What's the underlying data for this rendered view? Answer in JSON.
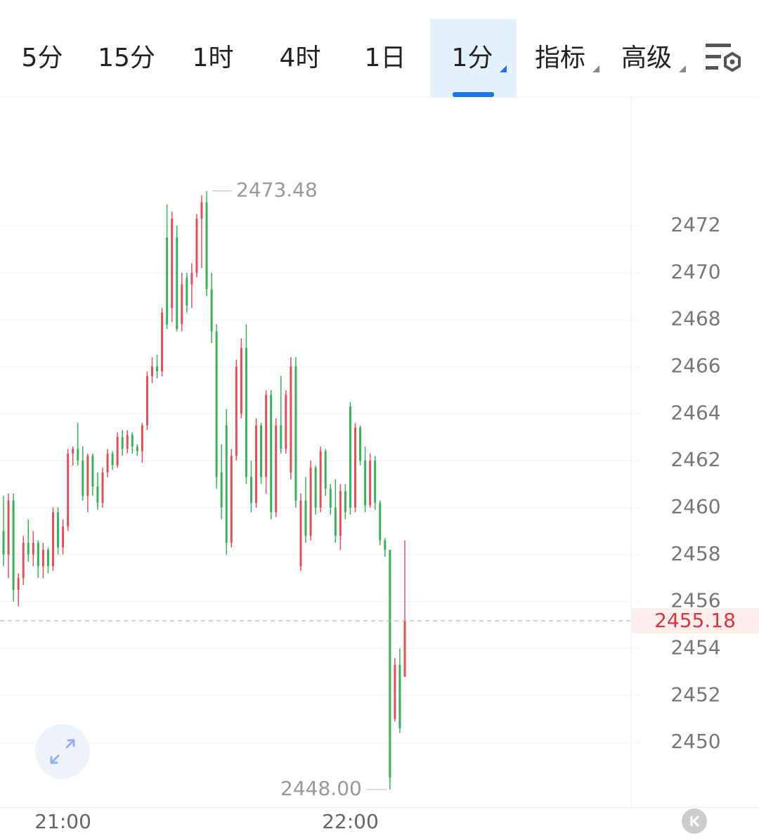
{
  "tabs": [
    "5分",
    "15分",
    "1时",
    "4时",
    "1日",
    "1分",
    "指标",
    "高级"
  ],
  "chart_data": {
    "type": "candlestick",
    "categories": [
      null,
      null,
      null,
      null,
      null,
      null,
      null,
      null,
      null,
      null,
      null,
      null,
      "21:00",
      null,
      null,
      null,
      null,
      null,
      null,
      null,
      null,
      null,
      null,
      null,
      null,
      null,
      null,
      null,
      null,
      null,
      null,
      null,
      null,
      null,
      null,
      null,
      null,
      null,
      null,
      null,
      null,
      null,
      null,
      null,
      null,
      null,
      null,
      null,
      null,
      null,
      null,
      null,
      null,
      null,
      null,
      null,
      null,
      null,
      null,
      null,
      null,
      null,
      null,
      null,
      null,
      null,
      null,
      null,
      null,
      null,
      "22:00",
      null,
      null,
      null,
      null,
      null,
      null,
      null,
      null,
      null,
      null,
      null
    ],
    "open": [
      2459,
      2458,
      2460.3,
      2456.5,
      2457,
      2458.5,
      2458,
      2458.5,
      2457.5,
      2458.2,
      2457.5,
      2459.8,
      2458.3,
      2459.2,
      2462.3,
      2462.5,
      2462,
      2460.5,
      2462.2,
      2460.9,
      2460.2,
      2461.5,
      2462.3,
      2461.8,
      2463,
      2462.5,
      2463.1,
      2462.6,
      2462.4,
      2463.5,
      2465.6,
      2466,
      2465.8,
      2471.5,
      2468.5,
      2471.5,
      2467.8,
      2469.8,
      2469.5,
      2470,
      2472.3,
      2473,
      2469.3,
      2467.5,
      2461.5,
      2463.5,
      2458.5,
      2462.2,
      2464,
      2466.8,
      2461.3,
      2460.2,
      2463.5,
      2461.3,
      2464.8,
      2459.8,
      2463.5,
      2462.5,
      2461.5,
      2466,
      2457.5,
      2460.3,
      2458.8,
      2461.7,
      2460,
      2462.4,
      2460.8,
      2460,
      2458.8,
      2460.7,
      2464.3,
      2460,
      2463.4,
      2462,
      2460.1,
      2462,
      2460.2,
      2458.6,
      2458.2,
      2451,
      2453.3,
      2452.8
    ],
    "high": [
      2460.5,
      2460.6,
      2460.6,
      2457.2,
      2458.8,
      2459.5,
      2459,
      2458.6,
      2458.5,
      2458.3,
      2460,
      2460,
      2459.5,
      2462.5,
      2462.6,
      2463.6,
      2462.6,
      2462.3,
      2462.3,
      2461.5,
      2461.7,
      2462.5,
      2462.4,
      2463.2,
      2463.3,
      2463.3,
      2463.2,
      2462.7,
      2463.6,
      2465.8,
      2466.4,
      2466.5,
      2468.5,
      2472.9,
      2472.6,
      2472,
      2470,
      2470,
      2470.4,
      2472.5,
      2473.3,
      2473.48,
      2470,
      2467.8,
      2462.7,
      2464.2,
      2462.5,
      2466.3,
      2467.2,
      2467.8,
      2462,
      2463.8,
      2463.6,
      2465,
      2465,
      2463.8,
      2465.6,
      2465,
      2466.4,
      2466.4,
      2460.6,
      2461.3,
      2462,
      2461.8,
      2462.6,
      2462.5,
      2461,
      2461.2,
      2461,
      2461,
      2464.5,
      2463.6,
      2463.5,
      2462.6,
      2462.3,
      2462.2,
      2460.3,
      2458.7,
      2458.2,
      2453.6,
      2454,
      2458.6
    ],
    "low": [
      2457.5,
      2457,
      2456,
      2455.8,
      2456.7,
      2457.7,
      2457.5,
      2457,
      2457,
      2457.2,
      2457.3,
      2458,
      2458,
      2459,
      2461.8,
      2461.8,
      2460.3,
      2459.8,
      2460.5,
      2459.9,
      2460,
      2461.3,
      2461.6,
      2461.7,
      2462.2,
      2462.3,
      2462.3,
      2462.2,
      2461.9,
      2463.3,
      2465.3,
      2465.5,
      2465.6,
      2467.6,
      2467.9,
      2467.5,
      2467.5,
      2468.3,
      2468.5,
      2469.8,
      2470.2,
      2469,
      2467,
      2460.8,
      2459.5,
      2458,
      2458.3,
      2462,
      2463.8,
      2461,
      2459.8,
      2460,
      2461,
      2460.6,
      2459.5,
      2459.6,
      2462.3,
      2462.3,
      2461.2,
      2460,
      2457.3,
      2458.5,
      2458.6,
      2459.7,
      2459.8,
      2460.5,
      2459.7,
      2458.5,
      2458.2,
      2459.5,
      2459.7,
      2459.8,
      2461.8,
      2459.8,
      2460,
      2459.9,
      2458.4,
      2457.9,
      2448,
      2450.9,
      2450.4,
      2452.8
    ],
    "close": [
      2458,
      2460.3,
      2456.5,
      2457,
      2458.5,
      2458,
      2458.5,
      2457.5,
      2458.2,
      2457.5,
      2459.8,
      2458.3,
      2459.2,
      2462.3,
      2462.5,
      2462,
      2460.5,
      2462.2,
      2460.9,
      2460.2,
      2461.5,
      2462.3,
      2461.8,
      2463,
      2462.5,
      2463.1,
      2462.6,
      2462.4,
      2463.5,
      2465.6,
      2466,
      2465.8,
      2468.3,
      2467.8,
      2472.3,
      2467.6,
      2469.5,
      2468.6,
      2470,
      2472.3,
      2473,
      2469.3,
      2467.5,
      2461.3,
      2460,
      2458.5,
      2462.2,
      2466,
      2466.8,
      2461.3,
      2460.2,
      2463.5,
      2461.3,
      2464.8,
      2459.8,
      2463.5,
      2462.5,
      2464.8,
      2466,
      2460.3,
      2460.3,
      2458.8,
      2461.7,
      2460,
      2462.4,
      2460.8,
      2460,
      2458.8,
      2460.7,
      2459.8,
      2460,
      2463.4,
      2462,
      2460.1,
      2462,
      2460.2,
      2458.6,
      2458.2,
      2448.5,
      2453.3,
      2450.6,
      2455.18
    ],
    "up_color": "#e0505a",
    "down_color": "#3daf5a",
    "ylim": [
      2447.25,
      2477.42
    ],
    "yticks": [
      2450,
      2452,
      2454,
      2456,
      2458,
      2460,
      2462,
      2464,
      2466,
      2468,
      2470,
      2472
    ],
    "grid": true,
    "high_label": 2473.48,
    "low_label": {
      "value": 2448,
      "label": "2448.00"
    },
    "last_price": 2455.18
  }
}
